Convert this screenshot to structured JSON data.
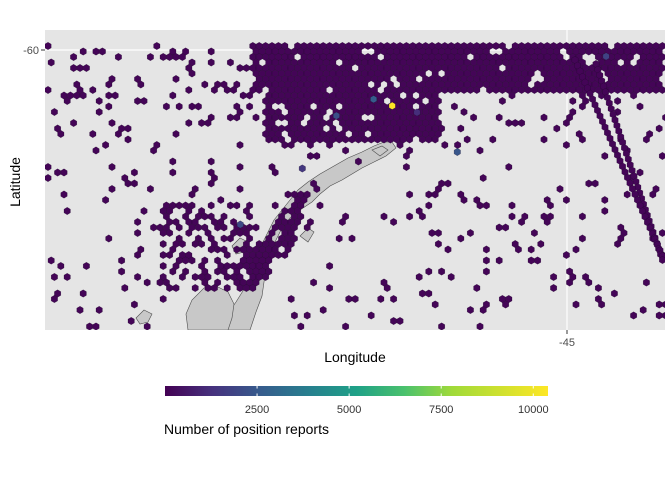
{
  "chart_data": {
    "type": "heatmap",
    "subtype": "hexbin-map",
    "xlabel": "Longitude",
    "ylabel": "Latitude",
    "x_ticks": [
      {
        "value": -45,
        "label": "-45"
      }
    ],
    "y_ticks": [
      {
        "value": -60,
        "label": "-60"
      }
    ],
    "xlim": [
      -62.5,
      -42.5
    ],
    "ylim": [
      -69,
      -59.9
    ],
    "grid": true,
    "panel_background": "#e5e5e5",
    "grid_color": "#ffffff",
    "land_color": "#c8c8c8",
    "land_outline_color": "#4d4d4d",
    "colorscale": "viridis",
    "colors": [
      "#440154",
      "#3b528b",
      "#21918c",
      "#5ec962",
      "#fde725"
    ],
    "legend": {
      "title": "Number of position reports",
      "position": "bottom",
      "range": [
        0,
        10400
      ],
      "ticks": [
        {
          "value": 2500,
          "label": "2500"
        },
        {
          "value": 5000,
          "label": "5000"
        },
        {
          "value": 7500,
          "label": "7500"
        },
        {
          "value": 10000,
          "label": "10000"
        }
      ]
    },
    "hotspots": [
      {
        "lon": -51.3,
        "lat": -62.2,
        "count": 10400
      },
      {
        "lon": -51.9,
        "lat": -62.0,
        "count": 2600
      },
      {
        "lon": -53.1,
        "lat": -62.5,
        "count": 2200
      },
      {
        "lon": -49.2,
        "lat": -63.6,
        "count": 2400
      },
      {
        "lon": -56.2,
        "lat": -65.8,
        "count": 2000
      },
      {
        "lon": -44.4,
        "lat": -60.7,
        "count": 1800
      },
      {
        "lon": -54.2,
        "lat": -64.1,
        "count": 1500
      },
      {
        "lon": -50.5,
        "lat": -62.4,
        "count": 1200
      }
    ]
  }
}
